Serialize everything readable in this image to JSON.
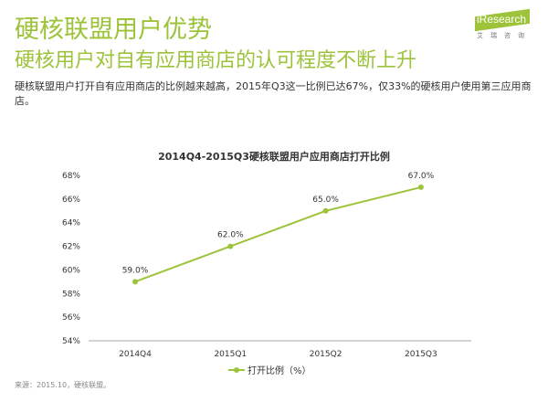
{
  "header": {
    "title": "硬核联盟用户优势",
    "subtitle": "硬核用户对自有应用商店的认可程度不断上升",
    "description": "硬核联盟用户打开自有应用商店的比例越来越高，2015年Q3这一比例已达67%，仅33%的硬核用户使用第三应用商店。"
  },
  "logo": {
    "text": "iResearch",
    "sub": "艾瑞咨询"
  },
  "source": "来源：2015.10，硬核联盟。",
  "chart_data": {
    "type": "line",
    "title": "2014Q4-2015Q3硬核联盟用户应用商店打开比例",
    "categories": [
      "2014Q4",
      "2015Q1",
      "2015Q2",
      "2015Q3"
    ],
    "series": [
      {
        "name": "打开比例（%）",
        "values": [
          59.0,
          62.0,
          65.0,
          67.0
        ],
        "labels": [
          "59.0%",
          "62.0%",
          "65.0%",
          "67.0%"
        ],
        "color": "#9dc33b"
      }
    ],
    "ylim": [
      54,
      68
    ],
    "yticks": [
      "54%",
      "56%",
      "58%",
      "60%",
      "62%",
      "64%",
      "66%",
      "68%"
    ],
    "grid": false,
    "legend": "bottom"
  }
}
